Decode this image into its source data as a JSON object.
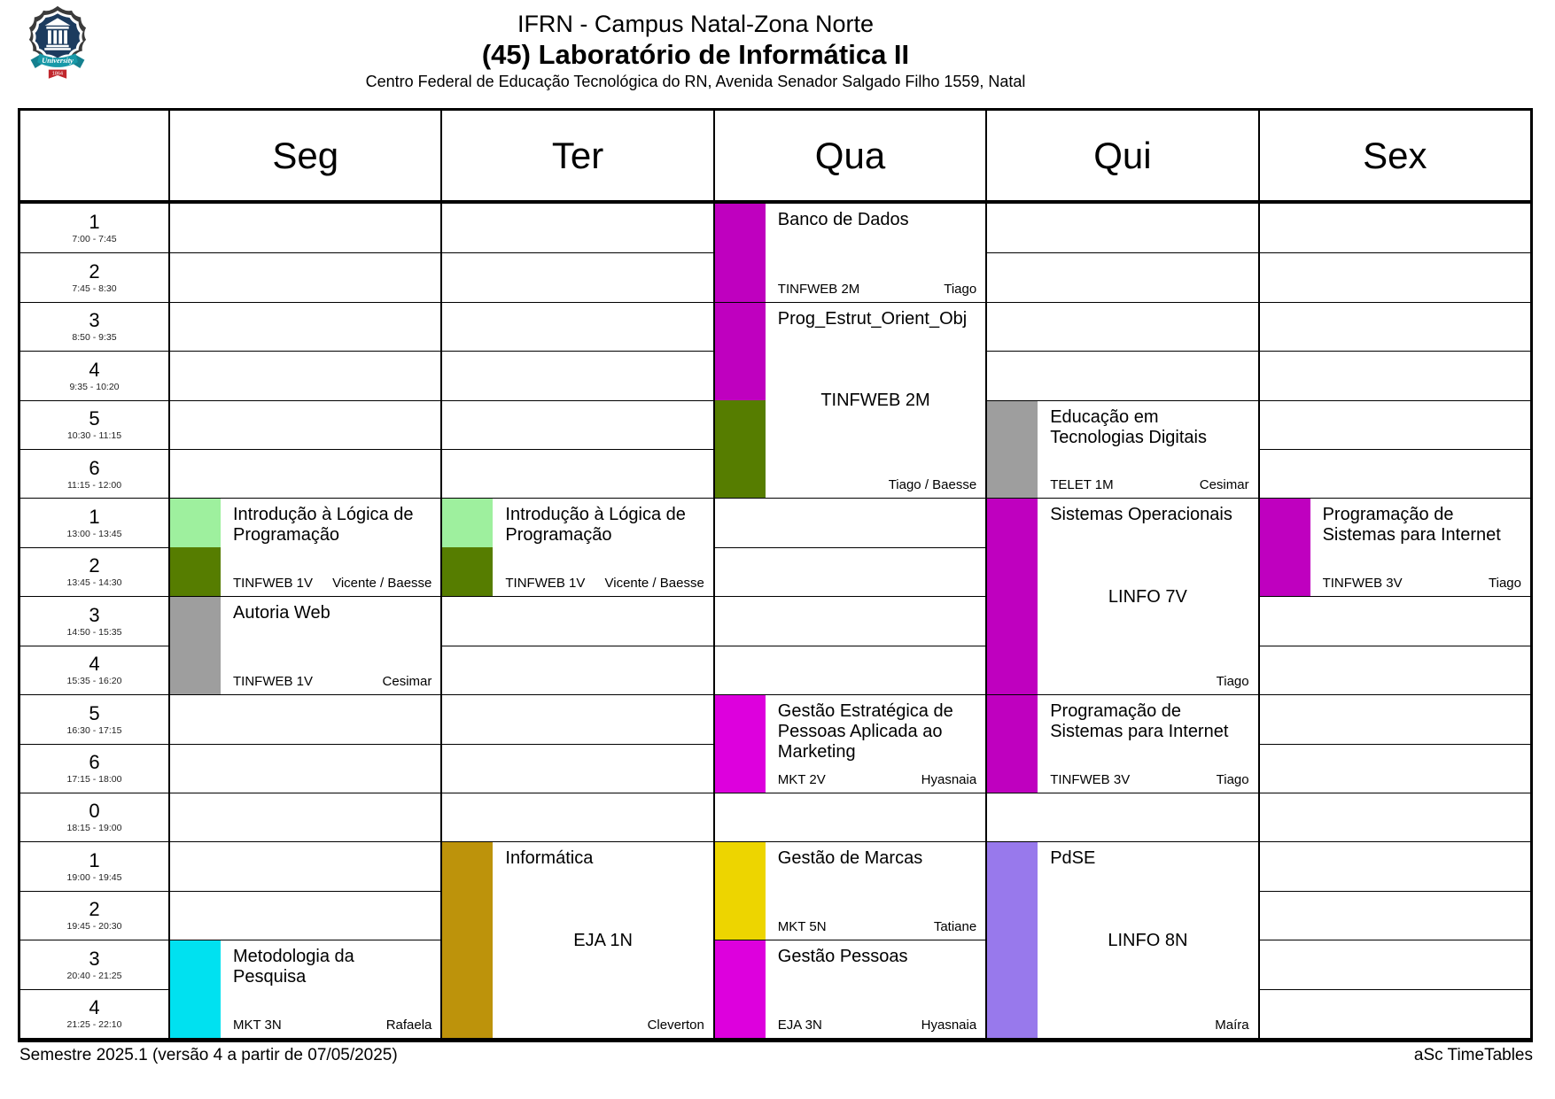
{
  "header": {
    "line1": "IFRN - Campus Natal-Zona Norte",
    "line2": "(45) Laboratório de Informática II",
    "address": "Centro Federal de Educação Tecnológica do RN, Avenida Senador Salgado Filho 1559, Natal",
    "logo": {
      "icon": "university-shield-logo",
      "banner": "University",
      "year": "1864"
    }
  },
  "days": [
    {
      "key": "seg",
      "label": "Seg"
    },
    {
      "key": "ter",
      "label": "Ter"
    },
    {
      "key": "qua",
      "label": "Qua"
    },
    {
      "key": "qui",
      "label": "Qui"
    },
    {
      "key": "sex",
      "label": "Sex"
    }
  ],
  "periods": [
    {
      "num": "1",
      "time": "7:00 - 7:45"
    },
    {
      "num": "2",
      "time": "7:45 - 8:30"
    },
    {
      "num": "3",
      "time": "8:50 - 9:35"
    },
    {
      "num": "4",
      "time": "9:35 - 10:20"
    },
    {
      "num": "5",
      "time": "10:30 - 11:15"
    },
    {
      "num": "6",
      "time": "11:15 - 12:00"
    },
    {
      "num": "1",
      "time": "13:00 - 13:45"
    },
    {
      "num": "2",
      "time": "13:45 - 14:30"
    },
    {
      "num": "3",
      "time": "14:50 - 15:35"
    },
    {
      "num": "4",
      "time": "15:35 - 16:20"
    },
    {
      "num": "5",
      "time": "16:30 - 17:15"
    },
    {
      "num": "6",
      "time": "17:15 - 18:00"
    },
    {
      "num": "0",
      "time": "18:15 - 19:00"
    },
    {
      "num": "1",
      "time": "19:00 - 19:45"
    },
    {
      "num": "2",
      "time": "19:45 - 20:30"
    },
    {
      "num": "3",
      "time": "20:40 - 21:25"
    },
    {
      "num": "4",
      "time": "21:25 - 22:10"
    }
  ],
  "colors": {
    "magenta": "#BF00BF",
    "magenta_bright": "#DD00DD",
    "olive": "#567D00",
    "light_green": "#9EF09E",
    "gray": "#9E9E9E",
    "gold": "#BD930B",
    "yellow": "#EDD500",
    "cyan": "#00E1F0",
    "purple": "#9879EC"
  },
  "lessons": [
    {
      "day": "qua",
      "row": 0,
      "span": 2,
      "title": "Banco de Dados",
      "group": "TINFWEB 2M",
      "teacher": "Tiago",
      "group_layout": "bottom-left",
      "bars": [
        "magenta"
      ]
    },
    {
      "day": "qua",
      "row": 2,
      "span": 4,
      "title": "Prog_Estrut_Orient_Obj",
      "group": "TINFWEB 2M",
      "teacher": "Tiago / Baesse",
      "group_layout": "center",
      "bars": [
        "magenta",
        "olive"
      ]
    },
    {
      "day": "qui",
      "row": 4,
      "span": 2,
      "title": "Educação em Tecnologias Digitais",
      "group": "TELET 1M",
      "teacher": "Cesimar",
      "group_layout": "bottom-left",
      "bars": [
        "gray"
      ]
    },
    {
      "day": "seg",
      "row": 6,
      "span": 2,
      "title": "Introdução à Lógica de Programação",
      "group": "TINFWEB 1V",
      "teacher": "Vicente / Baesse",
      "group_layout": "bottom-left",
      "bars": [
        "light_green",
        "olive"
      ]
    },
    {
      "day": "ter",
      "row": 6,
      "span": 2,
      "title": "Introdução à Lógica de Programação",
      "group": "TINFWEB 1V",
      "teacher": "Vicente / Baesse",
      "group_layout": "bottom-left",
      "bars": [
        "light_green",
        "olive"
      ]
    },
    {
      "day": "seg",
      "row": 8,
      "span": 2,
      "title": "Autoria Web",
      "group": "TINFWEB 1V",
      "teacher": "Cesimar",
      "group_layout": "bottom-left",
      "bars": [
        "gray"
      ]
    },
    {
      "day": "qui",
      "row": 6,
      "span": 4,
      "title": "Sistemas Operacionais",
      "group": "LINFO 7V",
      "teacher": "Tiago",
      "group_layout": "center",
      "bars": [
        "magenta"
      ]
    },
    {
      "day": "sex",
      "row": 6,
      "span": 2,
      "title": "Programação de Sistemas para Internet",
      "group": "TINFWEB 3V",
      "teacher": "Tiago",
      "group_layout": "bottom-left",
      "bars": [
        "magenta"
      ]
    },
    {
      "day": "qua",
      "row": 10,
      "span": 2,
      "title": "Gestão Estratégica de Pessoas Aplicada ao Marketing",
      "group": "MKT 2V",
      "teacher": "Hyasnaia",
      "group_layout": "bottom-left",
      "bars": [
        "magenta_bright"
      ]
    },
    {
      "day": "qui",
      "row": 10,
      "span": 2,
      "title": "Programação de Sistemas para Internet",
      "group": "TINFWEB 3V",
      "teacher": "Tiago",
      "group_layout": "bottom-left",
      "bars": [
        "magenta"
      ]
    },
    {
      "day": "ter",
      "row": 13,
      "span": 4,
      "title": "Informática",
      "group": "EJA 1N",
      "teacher": "Cleverton",
      "group_layout": "center",
      "bars": [
        "gold"
      ]
    },
    {
      "day": "qua",
      "row": 13,
      "span": 2,
      "title": "Gestão de Marcas",
      "group": "MKT 5N",
      "teacher": "Tatiane",
      "group_layout": "bottom-left",
      "bars": [
        "yellow"
      ]
    },
    {
      "day": "qua",
      "row": 15,
      "span": 2,
      "title": "Gestão Pessoas",
      "group": "EJA 3N",
      "teacher": "Hyasnaia",
      "group_layout": "bottom-left",
      "bars": [
        "magenta_bright"
      ]
    },
    {
      "day": "qui",
      "row": 13,
      "span": 4,
      "title": "PdSE",
      "group": "LINFO 8N",
      "teacher": "Maíra",
      "group_layout": "center",
      "bars": [
        "purple"
      ]
    },
    {
      "day": "seg",
      "row": 15,
      "span": 2,
      "title": "Metodologia da Pesquisa",
      "group": "MKT 3N",
      "teacher": "Rafaela",
      "group_layout": "bottom-left",
      "bars": [
        "cyan"
      ]
    }
  ],
  "footer": {
    "left": "Semestre 2025.1 (versão 4 a partir de 07/05/2025)",
    "right": "aSc TimeTables"
  }
}
